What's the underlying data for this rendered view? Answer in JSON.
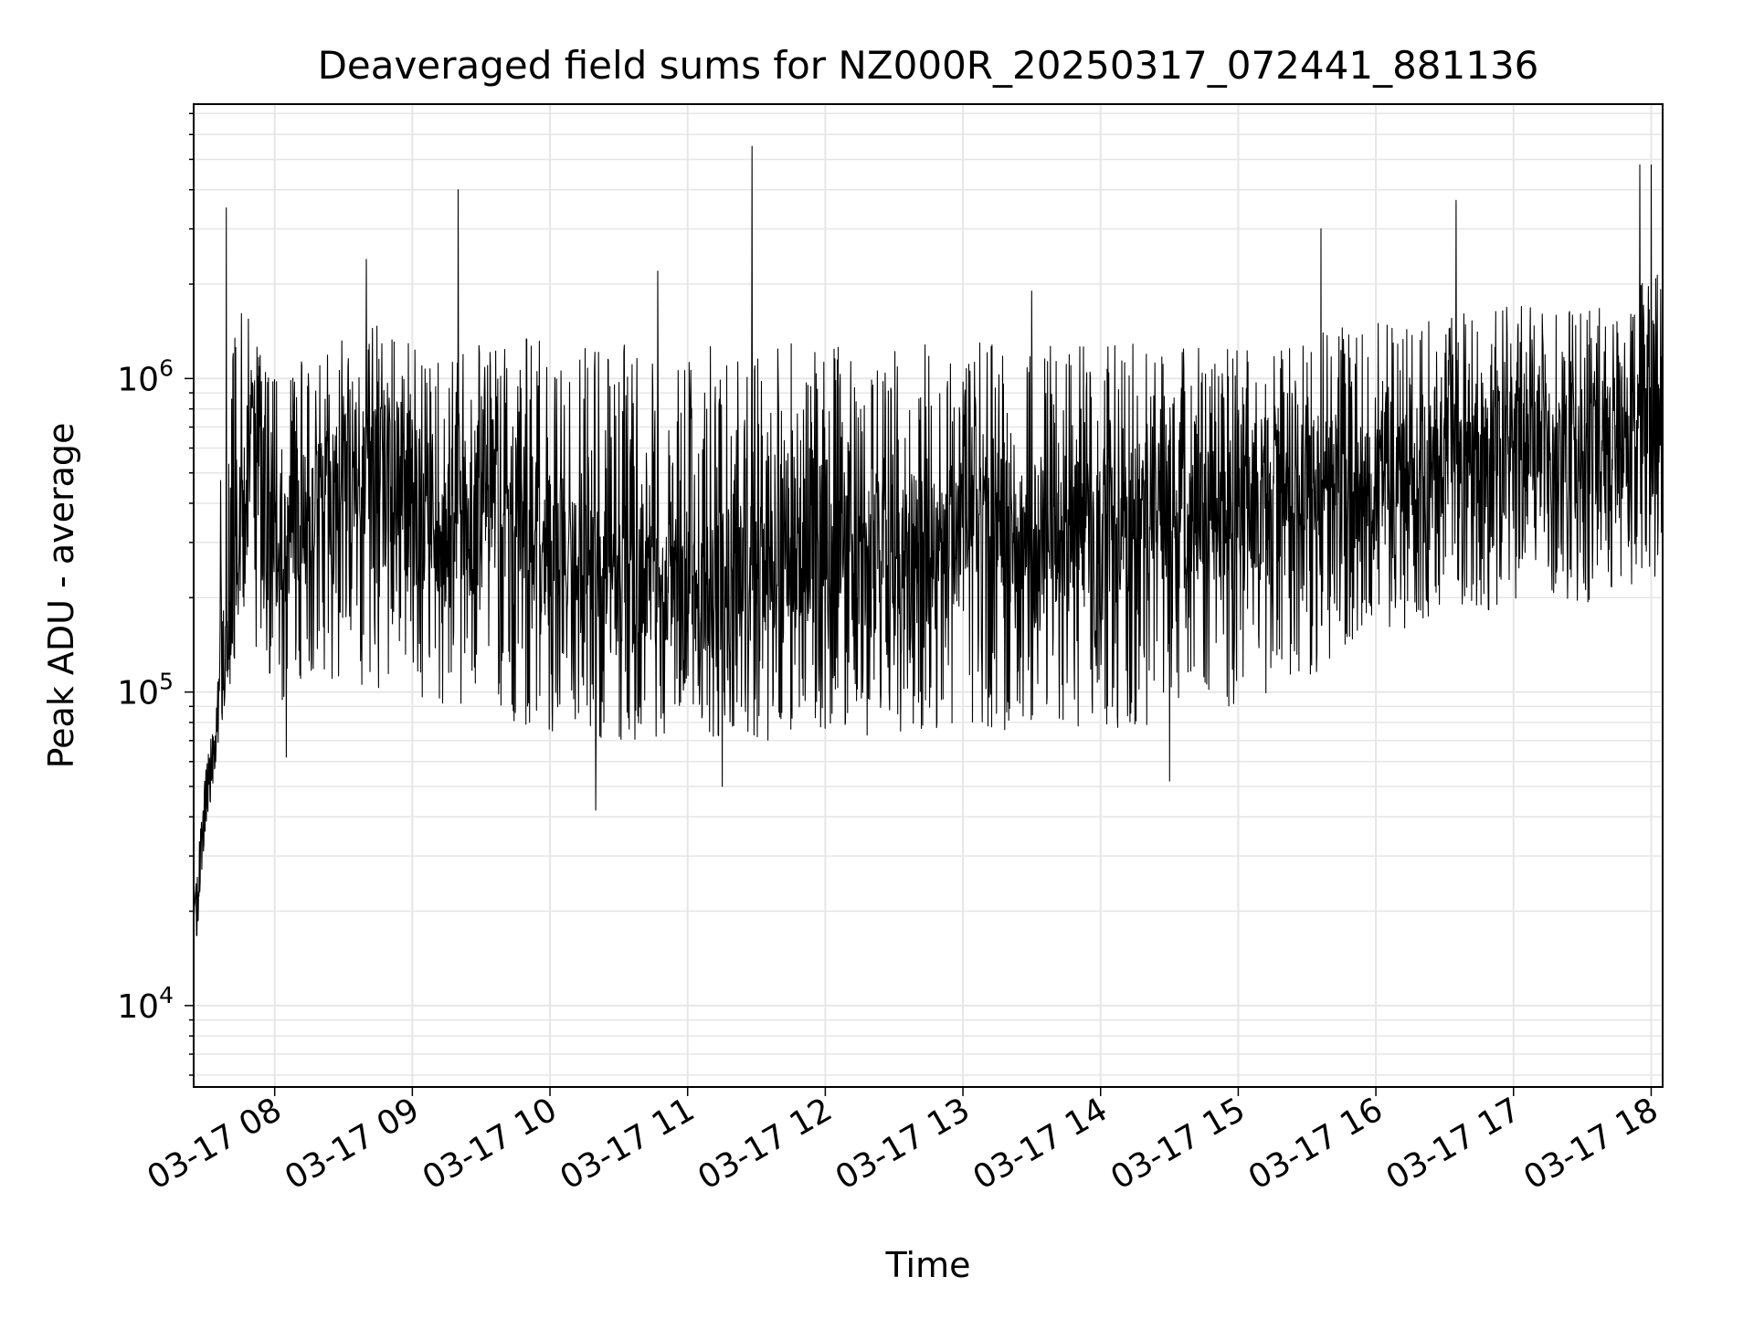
{
  "chart_data": {
    "type": "line",
    "title": "Deaveraged field sums for NZ000R_20250317_072441_881136",
    "xlabel": "Time",
    "ylabel": "Peak ADU - average",
    "yscale": "log",
    "ylim": [
      5500,
      7500000
    ],
    "xlim": [
      "03-17 07:24:41",
      "03-17 18:05"
    ],
    "x_ticks": [
      "03-17 08",
      "03-17 09",
      "03-17 10",
      "03-17 11",
      "03-17 12",
      "03-17 13",
      "03-17 14",
      "03-17 15",
      "03-17 16",
      "03-17 17",
      "03-17 18"
    ],
    "y_ticks": [
      {
        "base": "10",
        "exp": "4",
        "value": 10000
      },
      {
        "base": "10",
        "exp": "5",
        "value": 100000
      },
      {
        "base": "10",
        "exp": "6",
        "value": 1000000
      }
    ],
    "grid": true,
    "line_color": "#000000",
    "grid_color": "#e6e6e6",
    "series": [
      {
        "x": [
          "03-17 07:24",
          "03-17 07:30",
          "03-17 07:40",
          "03-17 07:50",
          "03-17 08:00",
          "03-17 08:15",
          "03-17 08:30",
          "03-17 08:45",
          "03-17 09:00",
          "03-17 09:15",
          "03-17 09:30",
          "03-17 09:45",
          "03-17 10:00",
          "03-17 10:15",
          "03-17 10:30",
          "03-17 10:45",
          "03-17 11:00",
          "03-17 11:15",
          "03-17 11:30",
          "03-17 11:45",
          "03-17 12:00",
          "03-17 12:15",
          "03-17 12:30",
          "03-17 12:45",
          "03-17 13:00",
          "03-17 13:15",
          "03-17 13:30",
          "03-17 13:45",
          "03-17 14:00",
          "03-17 14:15",
          "03-17 14:30",
          "03-17 14:45",
          "03-17 15:00",
          "03-17 15:15",
          "03-17 15:30",
          "03-17 15:45",
          "03-17 16:00",
          "03-17 16:15",
          "03-17 16:30",
          "03-17 16:45",
          "03-17 17:00",
          "03-17 17:15",
          "03-17 17:30",
          "03-17 17:45",
          "03-17 18:00",
          "03-17 18:05"
        ],
        "y": [
          14000,
          45000,
          150000,
          900000,
          300000,
          350000,
          500000,
          600000,
          350000,
          300000,
          350000,
          400000,
          300000,
          250000,
          200000,
          220000,
          200000,
          210000,
          250000,
          220000,
          260000,
          280000,
          300000,
          300000,
          320000,
          330000,
          340000,
          330000,
          330000,
          340000,
          340000,
          360000,
          400000,
          420000,
          450000,
          480000,
          500000,
          520000,
          550000,
          580000,
          600000,
          600000,
          580000,
          600000,
          700000,
          650000
        ],
        "upper_envelope": [
          20000,
          90000,
          2000000,
          1500000,
          1000000,
          1200000,
          1400000,
          1500000,
          1300000,
          1300000,
          1300000,
          1400000,
          1300000,
          1300000,
          1300000,
          1300000,
          1300000,
          1300000,
          1300000,
          1300000,
          1300000,
          1300000,
          1300000,
          1300000,
          1300000,
          1300000,
          1300000,
          1300000,
          1300000,
          1300000,
          1300000,
          1300000,
          1300000,
          1350000,
          1400000,
          1450000,
          1500000,
          1500000,
          1600000,
          1700000,
          1700000,
          1700000,
          1700000,
          1750000,
          2200000,
          2200000
        ],
        "lower_envelope": [
          12000,
          30000,
          120000,
          150000,
          90000,
          100000,
          110000,
          100000,
          95000,
          90000,
          85000,
          80000,
          75000,
          70000,
          70000,
          70000,
          70000,
          70000,
          70000,
          70000,
          72000,
          72000,
          74000,
          74000,
          74000,
          74000,
          74000,
          76000,
          76000,
          78000,
          80000,
          82000,
          90000,
          100000,
          110000,
          130000,
          150000,
          160000,
          170000,
          180000,
          190000,
          190000,
          190000,
          200000,
          220000,
          220000
        ],
        "spikes": [
          {
            "x": "03-17 07:39",
            "y": 3500000
          },
          {
            "x": "03-17 08:40",
            "y": 2400000
          },
          {
            "x": "03-17 09:20",
            "y": 4000000
          },
          {
            "x": "03-17 10:47",
            "y": 2200000
          },
          {
            "x": "03-17 11:28",
            "y": 5500000
          },
          {
            "x": "03-17 13:30",
            "y": 1900000
          },
          {
            "x": "03-17 15:36",
            "y": 3000000
          },
          {
            "x": "03-17 16:35",
            "y": 3700000
          },
          {
            "x": "03-17 17:55",
            "y": 4800000
          },
          {
            "x": "03-17 18:00",
            "y": 4800000
          }
        ],
        "dips": [
          {
            "x": "03-17 10:20",
            "y": 42000
          },
          {
            "x": "03-17 08:05",
            "y": 62000
          },
          {
            "x": "03-17 11:15",
            "y": 50000
          },
          {
            "x": "03-17 14:30",
            "y": 52000
          }
        ]
      }
    ]
  }
}
